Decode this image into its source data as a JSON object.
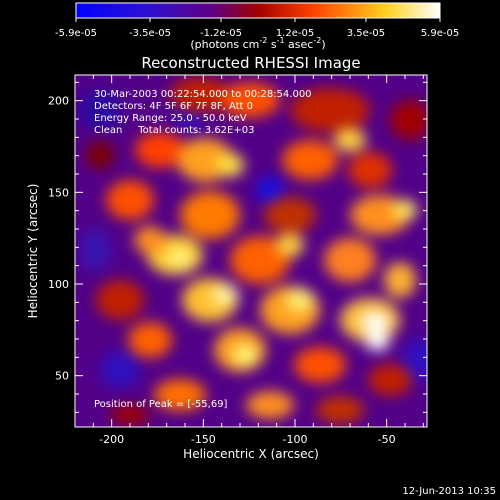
{
  "colorbar": {
    "ticks": [
      "-5.9e-05",
      "-3.5e-05",
      "-1.2e-05",
      "1.2e-05",
      "3.5e-05",
      "5.9e-05"
    ],
    "min": -5.9e-05,
    "max": 5.9e-05,
    "unit_main": "(photons cm",
    "unit_sup1": "-2",
    "unit_mid": " s",
    "unit_sup2": "-1",
    "unit_mid2": " asec",
    "unit_sup3": "-2",
    "unit_end": ")"
  },
  "chart_data": {
    "type": "heatmap",
    "title": "Reconstructed RHESSI Image",
    "xlabel": "Heliocentric X (arcsec)",
    "ylabel": "Heliocentric Y (arcsec)",
    "xlim": [
      -220,
      -28
    ],
    "ylim": [
      22,
      214
    ],
    "x_ticks": [
      "-200",
      "-150",
      "-100",
      "-50"
    ],
    "y_ticks": [
      "50",
      "100",
      "150",
      "200"
    ],
    "x_tick_values": [
      -200,
      -150,
      -100,
      -50
    ],
    "y_tick_values": [
      50,
      100,
      150,
      200
    ],
    "colormap": [
      "#0000ff",
      "#500090",
      "#a00000",
      "#ff5000",
      "#ffff40",
      "#ffffff"
    ],
    "annotations": [
      "30-Mar-2003 00:22:54.000 to 00:28:54.000",
      "Detectors: 4F 5F 6F 7F 8F, Att 0",
      "Energy Range: 25.0 - 50.0 keV",
      "Clean     Total counts: 3.62E+03"
    ],
    "peak_label": "Position of Peak = [-55,69]",
    "peak": [
      -55,
      69
    ]
  },
  "footer_timestamp": "12-Jun-2013 10:35"
}
